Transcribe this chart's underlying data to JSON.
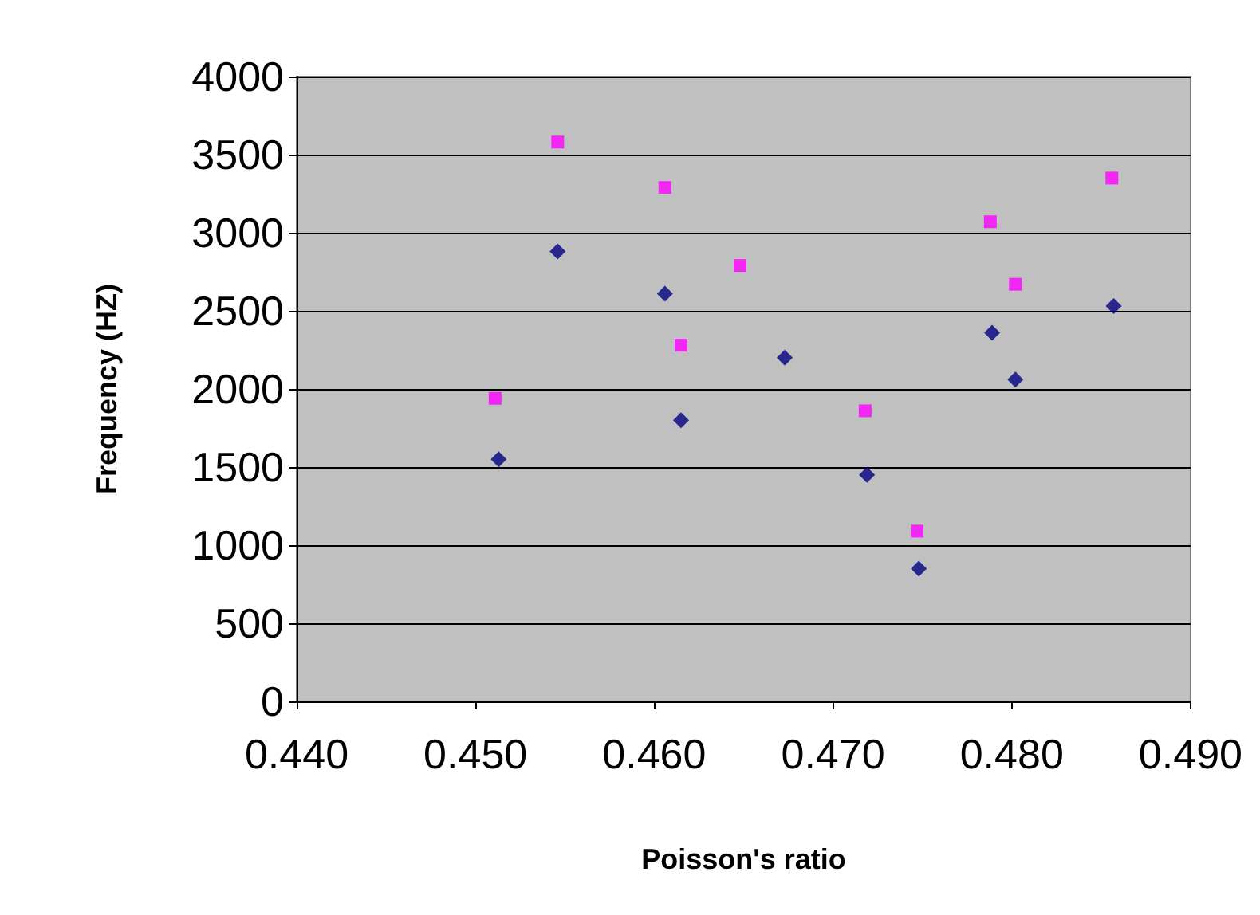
{
  "chart_data": {
    "type": "scatter",
    "xlabel": "Poisson's ratio",
    "ylabel": "Frequency (HZ)",
    "xlim": [
      0.44,
      0.49
    ],
    "xticks": [
      {
        "value": 0.44,
        "label": "0.440"
      },
      {
        "value": 0.45,
        "label": "0.450"
      },
      {
        "value": 0.46,
        "label": "0.460"
      },
      {
        "value": 0.47,
        "label": "0.470"
      },
      {
        "value": 0.48,
        "label": "0.480"
      },
      {
        "value": 0.49,
        "label": "0.490"
      }
    ],
    "ylim": [
      0,
      4000
    ],
    "yticks": [
      0,
      500,
      1000,
      1500,
      2000,
      2500,
      3000,
      3500,
      4000
    ],
    "grid": "y",
    "series": [
      {
        "color": "#000080",
        "marker": "diamond",
        "x": [
          0.4513,
          0.4546,
          0.4606,
          0.4615,
          0.4673,
          0.4719,
          0.4748,
          0.4789,
          0.4802,
          0.4857
        ],
        "values": [
          1550,
          2880,
          2610,
          1800,
          2200,
          1450,
          850,
          2360,
          2060,
          2530
        ]
      },
      {
        "color": "#ff00ff",
        "marker": "square",
        "x": [
          0.4511,
          0.4546,
          0.4606,
          0.4615,
          0.4648,
          0.4718,
          0.4747,
          0.4788,
          0.4802,
          0.4856
        ],
        "values": [
          1940,
          3580,
          3290,
          2280,
          2790,
          1860,
          1090,
          3070,
          2670,
          3350
        ]
      }
    ]
  }
}
